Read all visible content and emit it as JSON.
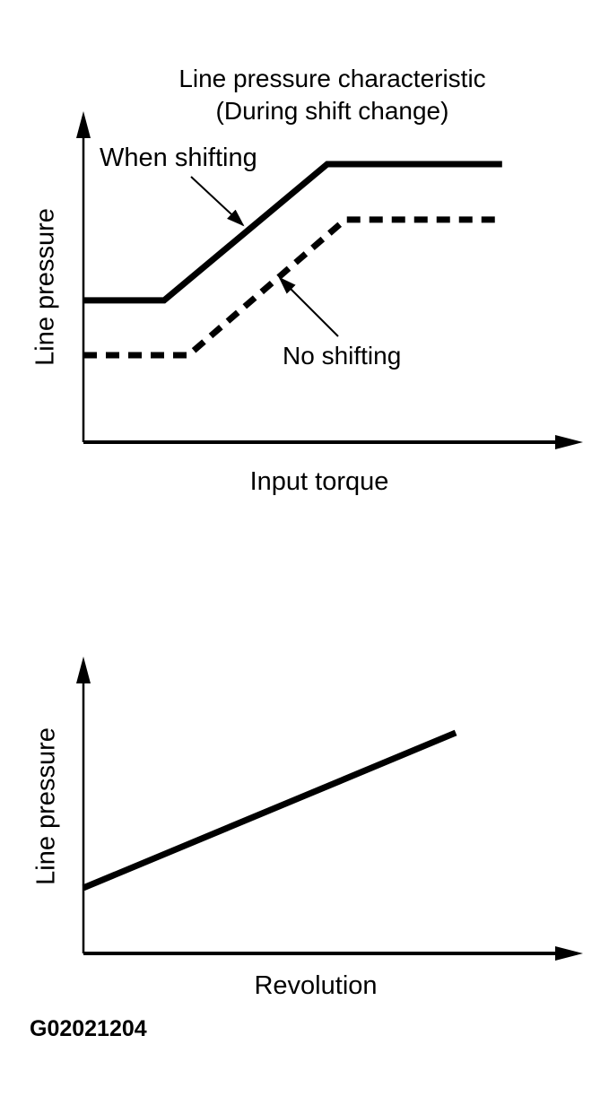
{
  "page": {
    "background": "#ffffff",
    "ink": "#000000"
  },
  "figure_code": "G02021204",
  "chart_data": [
    {
      "type": "line",
      "title": "Line pressure characteristic",
      "subtitle": "(During shift change)",
      "xlabel": "Input torque",
      "ylabel": "Line pressure",
      "axis_style": "arrow-tipped axes, no ticks, no gridlines, no numeric scale",
      "units": "percent of axis length (estimated; chart shows qualitative behavior only)",
      "xlim": [
        0,
        100
      ],
      "ylim": [
        0,
        100
      ],
      "series": [
        {
          "name": "When shifting",
          "line_style": "solid",
          "points": [
            [
              0,
              43.2
            ],
            [
              16.2,
              43.2
            ],
            [
              49.0,
              84.7
            ],
            [
              84.1,
              84.7
            ]
          ]
        },
        {
          "name": "No shifting",
          "line_style": "dashed",
          "points": [
            [
              0,
              26.5
            ],
            [
              21.1,
              26.5
            ],
            [
              52.6,
              67.8
            ],
            [
              84.1,
              67.8
            ]
          ]
        }
      ],
      "annotations": [
        {
          "text": "When shifting",
          "points_to": "solid line"
        },
        {
          "text": "No shifting",
          "points_to": "dashed line"
        }
      ],
      "legend": "in-plot text labels with leader arrows"
    },
    {
      "type": "line",
      "title": "",
      "xlabel": "Revolution",
      "ylabel": "Line pressure",
      "axis_style": "arrow-tipped axes, no ticks, no gridlines, no numeric scale",
      "units": "percent of axis length (estimated; chart shows qualitative behavior only)",
      "xlim": [
        0,
        100
      ],
      "ylim": [
        0,
        100
      ],
      "series": [
        {
          "name": "Line pressure vs revolution",
          "line_style": "solid",
          "points": [
            [
              0,
              22.3
            ],
            [
              74.8,
              75.0
            ]
          ]
        }
      ],
      "annotations": []
    }
  ]
}
